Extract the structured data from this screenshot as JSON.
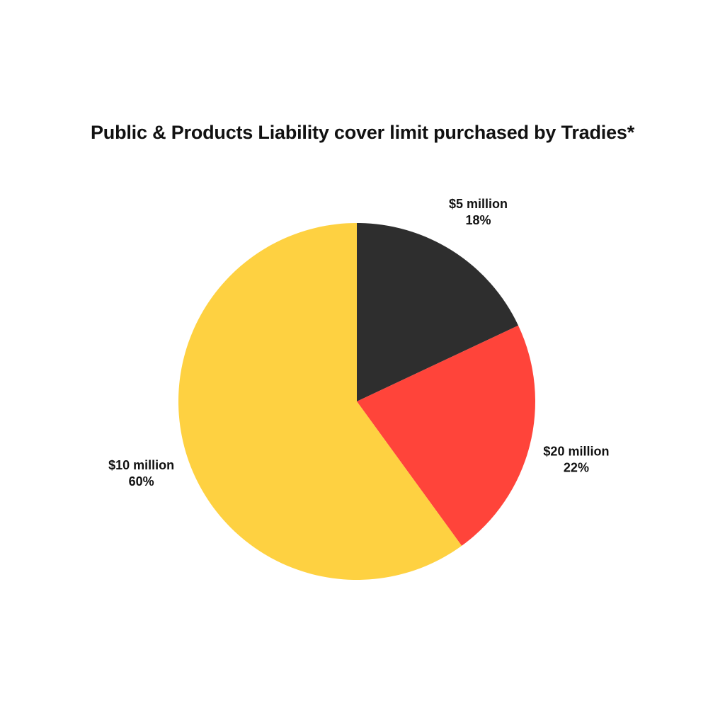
{
  "chart_data": {
    "type": "pie",
    "title": "Public & Products Liability cover limit purchased by Tradies*",
    "slices": [
      {
        "label": "$5 million",
        "value": 18,
        "value_label": "18%",
        "color": "#2e2e2e"
      },
      {
        "label": "$20 million",
        "value": 22,
        "value_label": "22%",
        "color": "#ff443a"
      },
      {
        "label": "$10 million",
        "value": 60,
        "value_label": "60%",
        "color": "#fed141"
      }
    ],
    "start": "top",
    "direction": "clockwise",
    "legend": "none"
  }
}
